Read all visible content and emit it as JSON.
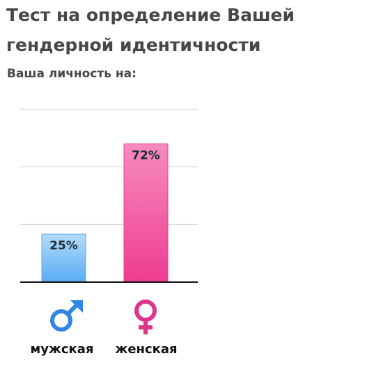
{
  "page": {
    "title": "Тест на определение Вашей гендерной идентичности",
    "subtitle": "Ваша личность на:"
  },
  "chart_data": {
    "type": "bar",
    "categories": [
      "мужская",
      "женская"
    ],
    "values": [
      25,
      72
    ],
    "value_labels": [
      "25%",
      "72%"
    ],
    "category_icons": [
      "male-symbol-icon",
      "female-symbol-icon"
    ],
    "ylim": [
      0,
      90
    ],
    "grid": true,
    "colors": {
      "male_top": "#b3dcfb",
      "male_bottom": "#5aacf4",
      "male_icon": "#2f86e6",
      "female_top": "#f78bbf",
      "female_bottom": "#ee3c8f",
      "female_icon": "#e0338b"
    }
  }
}
